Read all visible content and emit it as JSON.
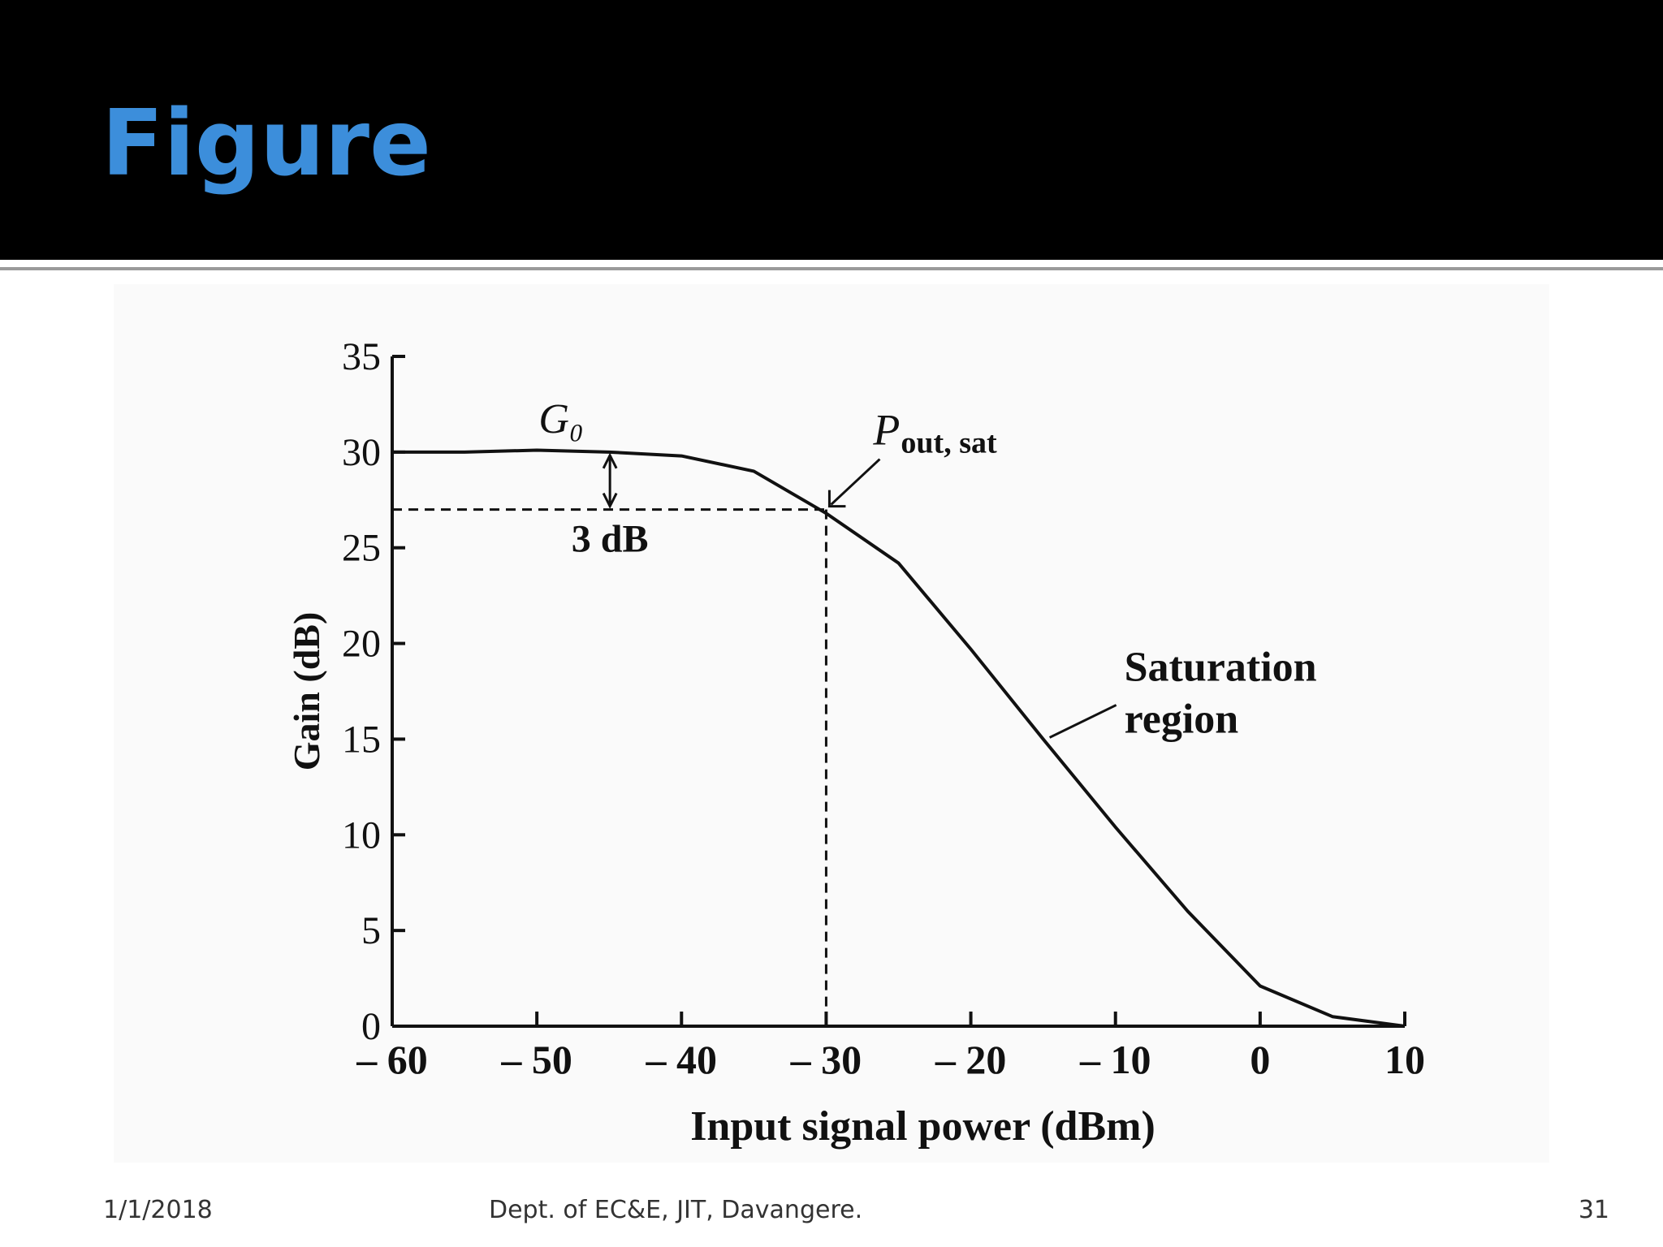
{
  "slide": {
    "title": "Figure",
    "footer_date": "1/1/2018",
    "footer_text": "Dept. of EC&E, JIT, Davangere.",
    "page_number": "31"
  },
  "chart_data": {
    "type": "line",
    "y_label": "Gain (dB)",
    "x_label": "Input signal power (dBm)",
    "x": [
      -60,
      -55,
      -50,
      -45,
      -40,
      -35,
      -30,
      -25,
      -20,
      -15,
      -10,
      -5,
      0,
      5,
      10
    ],
    "series": [
      {
        "name": "Gain",
        "color": "#111111",
        "values": [
          30,
          30,
          30.1,
          30,
          29.8,
          29,
          26.8,
          24.2,
          19.7,
          15,
          10.4,
          6,
          2.1,
          0.5,
          0
        ]
      }
    ],
    "xlim": [
      -60,
      10
    ],
    "xticks": [
      {
        "value": -60,
        "label": "– 60"
      },
      {
        "value": -50,
        "label": "– 50"
      },
      {
        "value": -40,
        "label": "– 40"
      },
      {
        "value": -30,
        "label": "– 30"
      },
      {
        "value": -20,
        "label": "– 20"
      },
      {
        "value": -10,
        "label": "– 10"
      },
      0,
      10
    ],
    "ylim": [
      0,
      35
    ],
    "yticks": [
      0,
      5,
      10,
      15,
      20,
      25,
      30,
      35
    ],
    "annotations": {
      "g0": "G₀",
      "g0_x": -50,
      "g0_y": 30,
      "pout_p": "P",
      "pout_sub": "out, sat",
      "three_db": "3 dB",
      "sat_x": -30,
      "sat_y": 27,
      "saturation_1": "Saturation",
      "saturation_2": "region",
      "region_x": -15,
      "region_y": 15
    }
  }
}
